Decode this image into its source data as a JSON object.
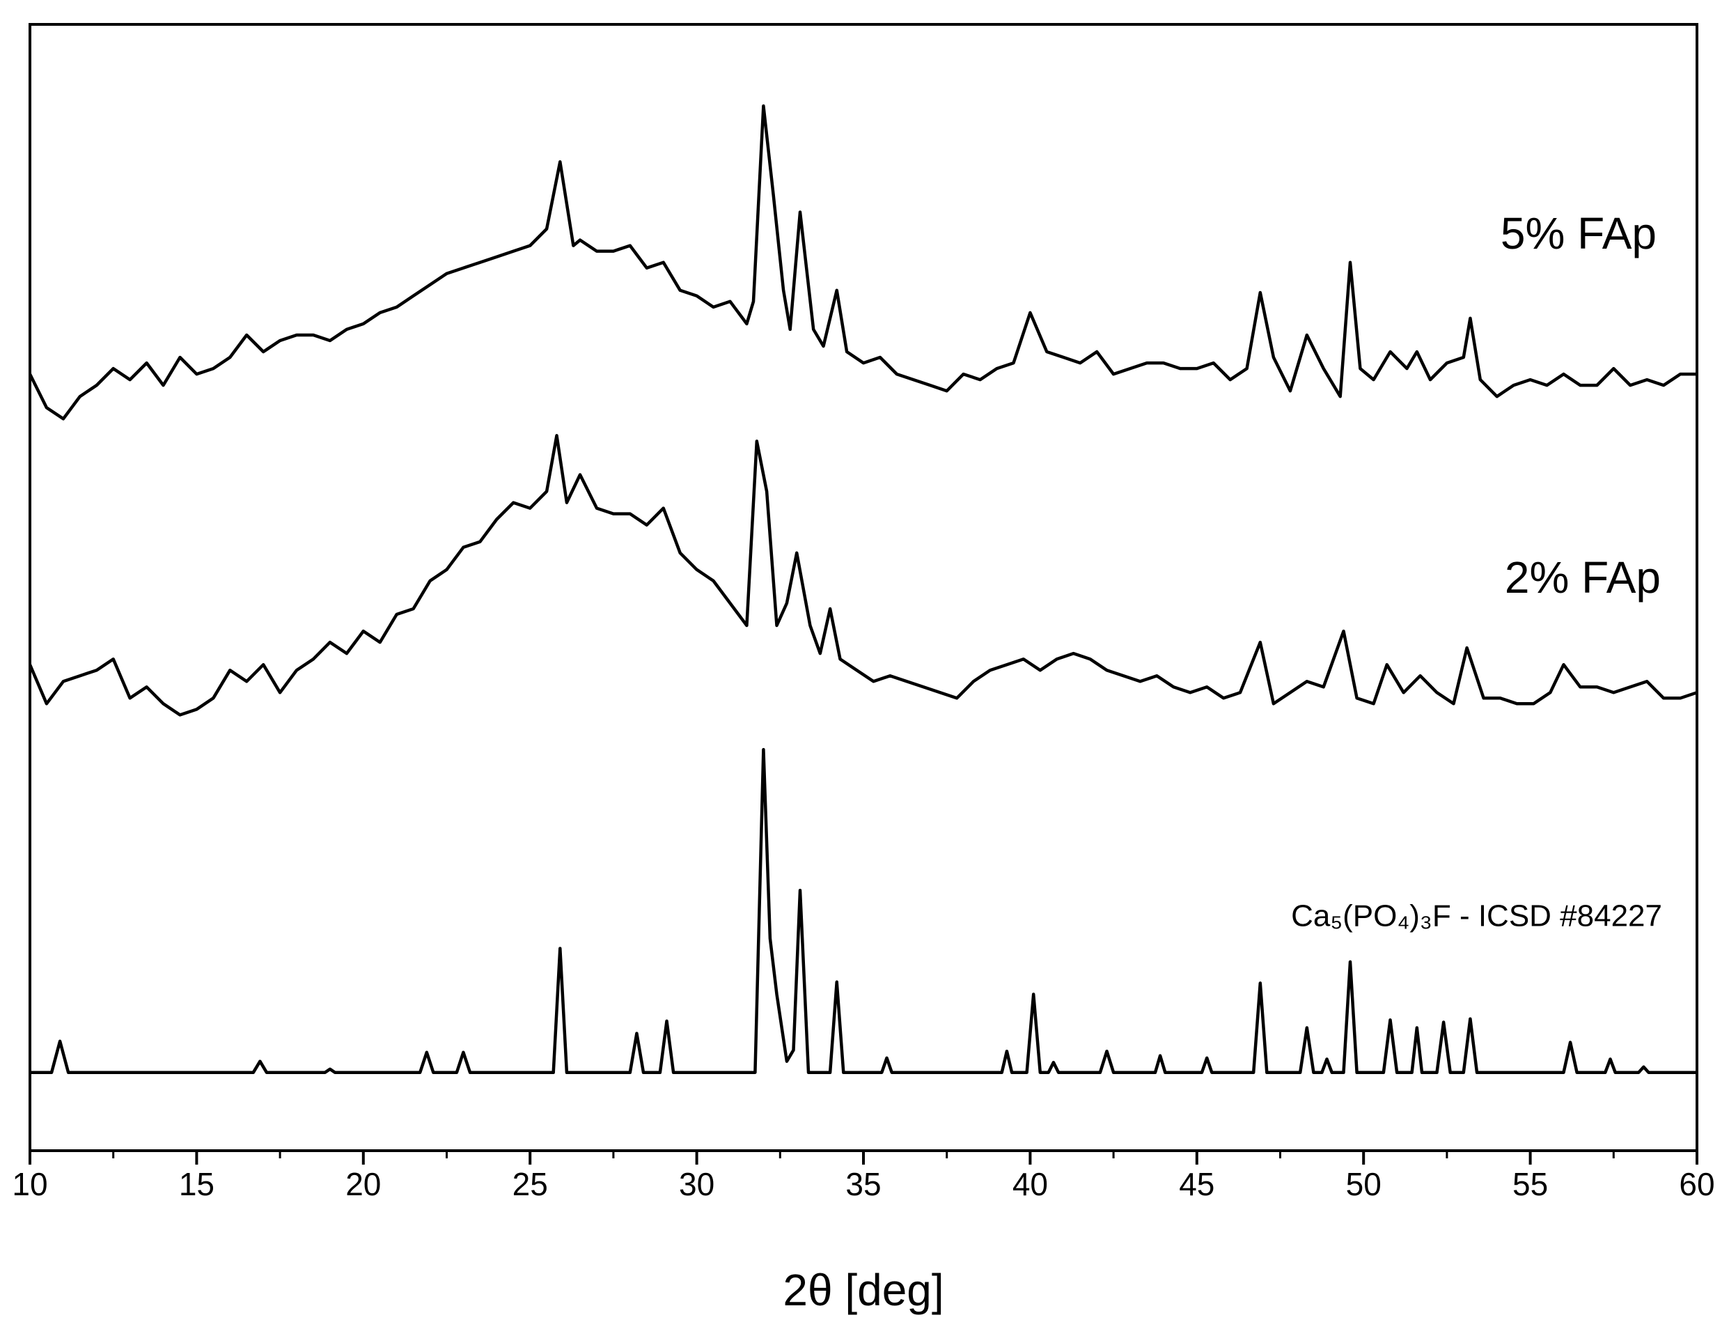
{
  "chart_data": {
    "type": "line",
    "xlabel": "2θ [deg]",
    "xlim": [
      10,
      60
    ],
    "xticks": [
      10,
      15,
      20,
      25,
      30,
      35,
      40,
      45,
      50,
      55,
      60
    ],
    "xminorticks": [
      12.5,
      17.5,
      22.5,
      27.5,
      32.5,
      37.5,
      42.5,
      47.5,
      52.5,
      57.5
    ],
    "ylim": [
      0,
      1008
    ],
    "series": [
      {
        "name": "5% FAp",
        "color": "#000000",
        "x": [
          10.0,
          10.5,
          11.0,
          11.5,
          12.0,
          12.5,
          13.0,
          13.5,
          14.0,
          14.5,
          15.0,
          15.5,
          16.0,
          16.5,
          17.0,
          17.5,
          18.0,
          18.5,
          19.0,
          19.5,
          20.0,
          20.5,
          21.0,
          21.5,
          22.0,
          22.5,
          23.0,
          23.5,
          24.0,
          24.5,
          25.0,
          25.5,
          25.9,
          26.3,
          26.5,
          27.0,
          27.5,
          28.0,
          28.5,
          29.0,
          29.5,
          30.0,
          30.5,
          31.0,
          31.5,
          31.7,
          32.0,
          32.3,
          32.6,
          32.8,
          33.1,
          33.5,
          33.8,
          34.2,
          34.5,
          35.0,
          35.5,
          36.0,
          36.5,
          37.0,
          37.5,
          38.0,
          38.5,
          39.0,
          39.5,
          40.0,
          40.5,
          41.0,
          41.5,
          42.0,
          42.5,
          43.0,
          43.5,
          44.0,
          44.5,
          45.0,
          45.5,
          46.0,
          46.5,
          46.9,
          47.3,
          47.8,
          48.3,
          48.8,
          49.3,
          49.6,
          49.9,
          50.3,
          50.8,
          51.3,
          51.6,
          52.0,
          52.5,
          53.0,
          53.2,
          53.5,
          54.0,
          54.5,
          55.0,
          55.5,
          56.0,
          56.5,
          57.0,
          57.5,
          58.0,
          58.5,
          59.0,
          59.5,
          60.0
        ],
        "values": [
          695,
          665,
          655,
          675,
          685,
          700,
          690,
          705,
          685,
          710,
          695,
          700,
          710,
          730,
          715,
          725,
          730,
          730,
          725,
          735,
          740,
          750,
          755,
          765,
          775,
          785,
          790,
          795,
          800,
          805,
          810,
          825,
          885,
          810,
          815,
          805,
          805,
          810,
          790,
          795,
          770,
          765,
          755,
          760,
          740,
          760,
          935,
          855,
          770,
          735,
          840,
          735,
          720,
          770,
          715,
          705,
          710,
          695,
          690,
          685,
          680,
          695,
          690,
          700,
          705,
          750,
          715,
          710,
          705,
          715,
          695,
          700,
          705,
          705,
          700,
          700,
          705,
          690,
          700,
          768,
          710,
          680,
          730,
          700,
          675,
          795,
          700,
          690,
          715,
          700,
          715,
          690,
          705,
          710,
          745,
          690,
          675,
          685,
          690,
          685,
          695,
          685,
          685,
          700,
          685,
          690,
          685,
          695,
          695
        ]
      },
      {
        "name": "2% FAp",
        "color": "#000000",
        "x": [
          10.0,
          10.5,
          11.0,
          11.5,
          12.0,
          12.5,
          13.0,
          13.5,
          14.0,
          14.5,
          15.0,
          15.5,
          16.0,
          16.5,
          17.0,
          17.5,
          18.0,
          18.5,
          19.0,
          19.5,
          20.0,
          20.5,
          21.0,
          21.5,
          22.0,
          22.5,
          23.0,
          23.5,
          24.0,
          24.5,
          25.0,
          25.5,
          25.8,
          26.1,
          26.5,
          27.0,
          27.5,
          28.0,
          28.5,
          29.0,
          29.5,
          30.0,
          30.5,
          31.0,
          31.5,
          31.8,
          32.1,
          32.4,
          32.7,
          33.0,
          33.4,
          33.7,
          34.0,
          34.3,
          34.8,
          35.3,
          35.8,
          36.3,
          36.8,
          37.3,
          37.8,
          38.3,
          38.8,
          39.3,
          39.8,
          40.3,
          40.8,
          41.3,
          41.8,
          42.3,
          42.8,
          43.3,
          43.8,
          44.3,
          44.8,
          45.3,
          45.8,
          46.3,
          46.9,
          47.3,
          47.8,
          48.3,
          48.8,
          49.4,
          49.8,
          50.3,
          50.7,
          51.2,
          51.7,
          52.2,
          52.7,
          53.1,
          53.6,
          54.1,
          54.6,
          55.1,
          55.6,
          56.0,
          56.5,
          57.0,
          57.5,
          58.0,
          58.5,
          59.0,
          59.5,
          60.0
        ],
        "values": [
          435,
          400,
          420,
          425,
          430,
          440,
          405,
          415,
          400,
          390,
          395,
          405,
          430,
          420,
          435,
          410,
          430,
          440,
          455,
          445,
          465,
          455,
          480,
          485,
          510,
          520,
          540,
          545,
          565,
          580,
          575,
          590,
          640,
          580,
          605,
          575,
          570,
          570,
          560,
          575,
          535,
          520,
          510,
          490,
          470,
          635,
          590,
          470,
          490,
          535,
          470,
          445,
          485,
          440,
          430,
          420,
          425,
          420,
          415,
          410,
          405,
          420,
          430,
          435,
          440,
          430,
          440,
          445,
          440,
          430,
          425,
          420,
          425,
          415,
          410,
          415,
          405,
          410,
          455,
          400,
          410,
          420,
          415,
          465,
          405,
          400,
          435,
          410,
          425,
          410,
          400,
          450,
          405,
          405,
          400,
          400,
          410,
          435,
          415,
          415,
          410,
          415,
          420,
          405,
          405,
          410
        ]
      },
      {
        "name": "Ca₅(PO₄)₃F - ICSD #84227",
        "color": "#000000",
        "x": [
          10,
          10.65,
          10.9,
          11.15,
          16.7,
          16.9,
          17.1,
          18.85,
          19.0,
          19.15,
          21.7,
          21.9,
          22.1,
          22.8,
          23.0,
          23.2,
          25.7,
          25.9,
          26.1,
          28.0,
          28.2,
          28.4,
          28.9,
          29.1,
          29.3,
          31.75,
          32.0,
          32.2,
          32.4,
          32.7,
          32.9,
          33.1,
          33.35,
          34.0,
          34.2,
          34.4,
          35.55,
          35.7,
          35.85,
          39.15,
          39.3,
          39.45,
          39.9,
          40.1,
          40.3,
          40.55,
          40.7,
          40.85,
          42.1,
          42.3,
          42.5,
          43.75,
          43.9,
          44.05,
          45.15,
          45.3,
          45.45,
          46.7,
          46.9,
          47.1,
          48.1,
          48.3,
          48.5,
          48.75,
          48.9,
          49.05,
          49.4,
          49.6,
          49.8,
          50.6,
          50.8,
          51.0,
          51.45,
          51.6,
          51.75,
          52.2,
          52.4,
          52.6,
          53.0,
          53.2,
          53.4,
          56.0,
          56.2,
          56.4,
          57.25,
          57.4,
          57.55,
          58.25,
          58.4,
          58.55,
          60
        ],
        "values": [
          70,
          70,
          98,
          70,
          70,
          80,
          70,
          70,
          73,
          70,
          70,
          88,
          70,
          70,
          88,
          70,
          70,
          181,
          70,
          70,
          105,
          70,
          70,
          116,
          70,
          70,
          359,
          190,
          140,
          80,
          90,
          233,
          70,
          70,
          151,
          70,
          70,
          83,
          70,
          70,
          89,
          70,
          70,
          140,
          70,
          70,
          79,
          70,
          70,
          89,
          70,
          70,
          85,
          70,
          70,
          83,
          70,
          70,
          150,
          70,
          70,
          110,
          70,
          70,
          82,
          70,
          70,
          169,
          70,
          70,
          117,
          70,
          70,
          110,
          70,
          70,
          115,
          70,
          70,
          118,
          70,
          70,
          97,
          70,
          70,
          82,
          70,
          70,
          75,
          70,
          70
        ]
      }
    ]
  }
}
